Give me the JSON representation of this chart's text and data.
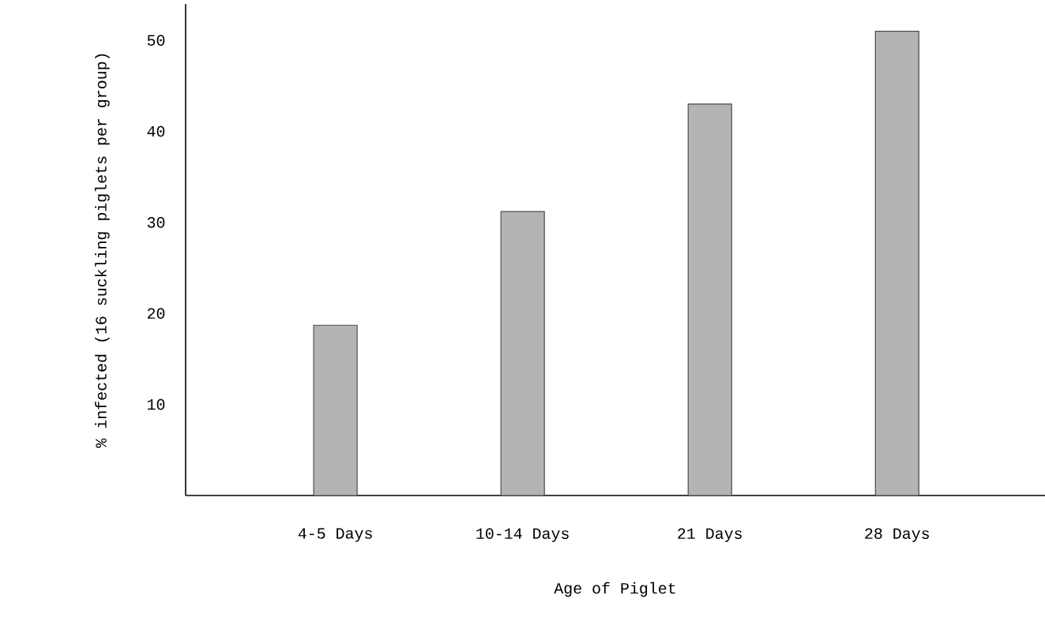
{
  "chart_data": {
    "type": "bar",
    "xlabel": "Age of Piglet",
    "ylabel": "% infected (16 suckling piglets per group)",
    "categories": [
      "4-5 Days",
      "10-14 Days",
      "21 Days",
      "28 Days"
    ],
    "values": [
      18.7,
      31.2,
      43,
      51
    ],
    "color": "#b4b4b4",
    "ylim": [
      0,
      54
    ],
    "yticks": [
      10,
      20,
      30,
      40,
      50
    ],
    "grid": false
  }
}
